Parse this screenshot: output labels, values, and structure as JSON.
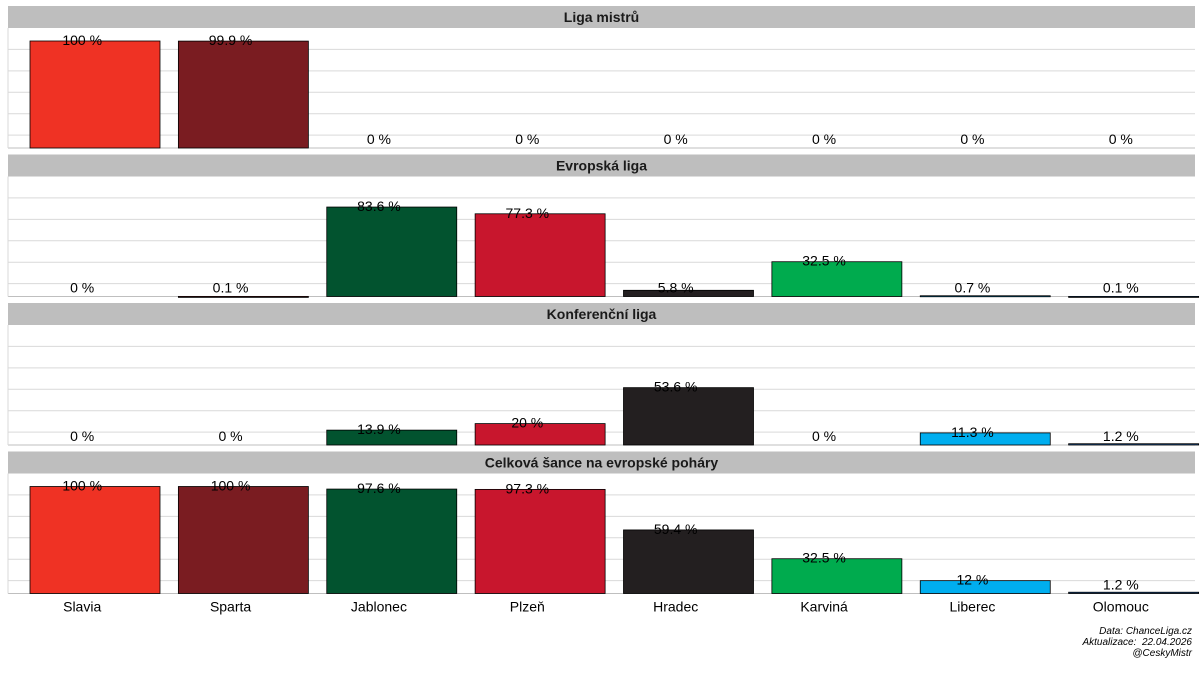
{
  "chart_data": {
    "type": "bar",
    "categories": [
      "Slavia",
      "Sparta",
      "Jablonec",
      "Plzeň",
      "Hradec",
      "Karviná",
      "Liberec",
      "Olomouc"
    ],
    "colors": [
      "#ef3224",
      "#7a1c21",
      "#02532f",
      "#c8162d",
      "#231f20",
      "#00ab4e",
      "#00aeef",
      "#1c4f8c"
    ],
    "value_suffix": " %",
    "ylim": [
      0,
      100
    ],
    "grid": true,
    "panels": [
      {
        "title": "Liga mistrů",
        "values": [
          100,
          99.9,
          0,
          0,
          0,
          0,
          0,
          0
        ]
      },
      {
        "title": "Evropská liga",
        "values": [
          0,
          0.1,
          83.6,
          77.3,
          5.8,
          32.5,
          0.7,
          0.1
        ]
      },
      {
        "title": "Konferenční liga",
        "values": [
          0,
          0,
          13.9,
          20,
          53.6,
          0,
          11.3,
          1.2
        ]
      },
      {
        "title": "Celková šance na evropské poháry",
        "values": [
          100,
          100,
          97.6,
          97.3,
          59.4,
          32.5,
          12,
          1.2
        ]
      }
    ]
  },
  "footer": {
    "source": "Data: ChanceLiga.cz",
    "updated": "Aktualizace:  22.04.2026",
    "author": "@CeskyMistr"
  }
}
